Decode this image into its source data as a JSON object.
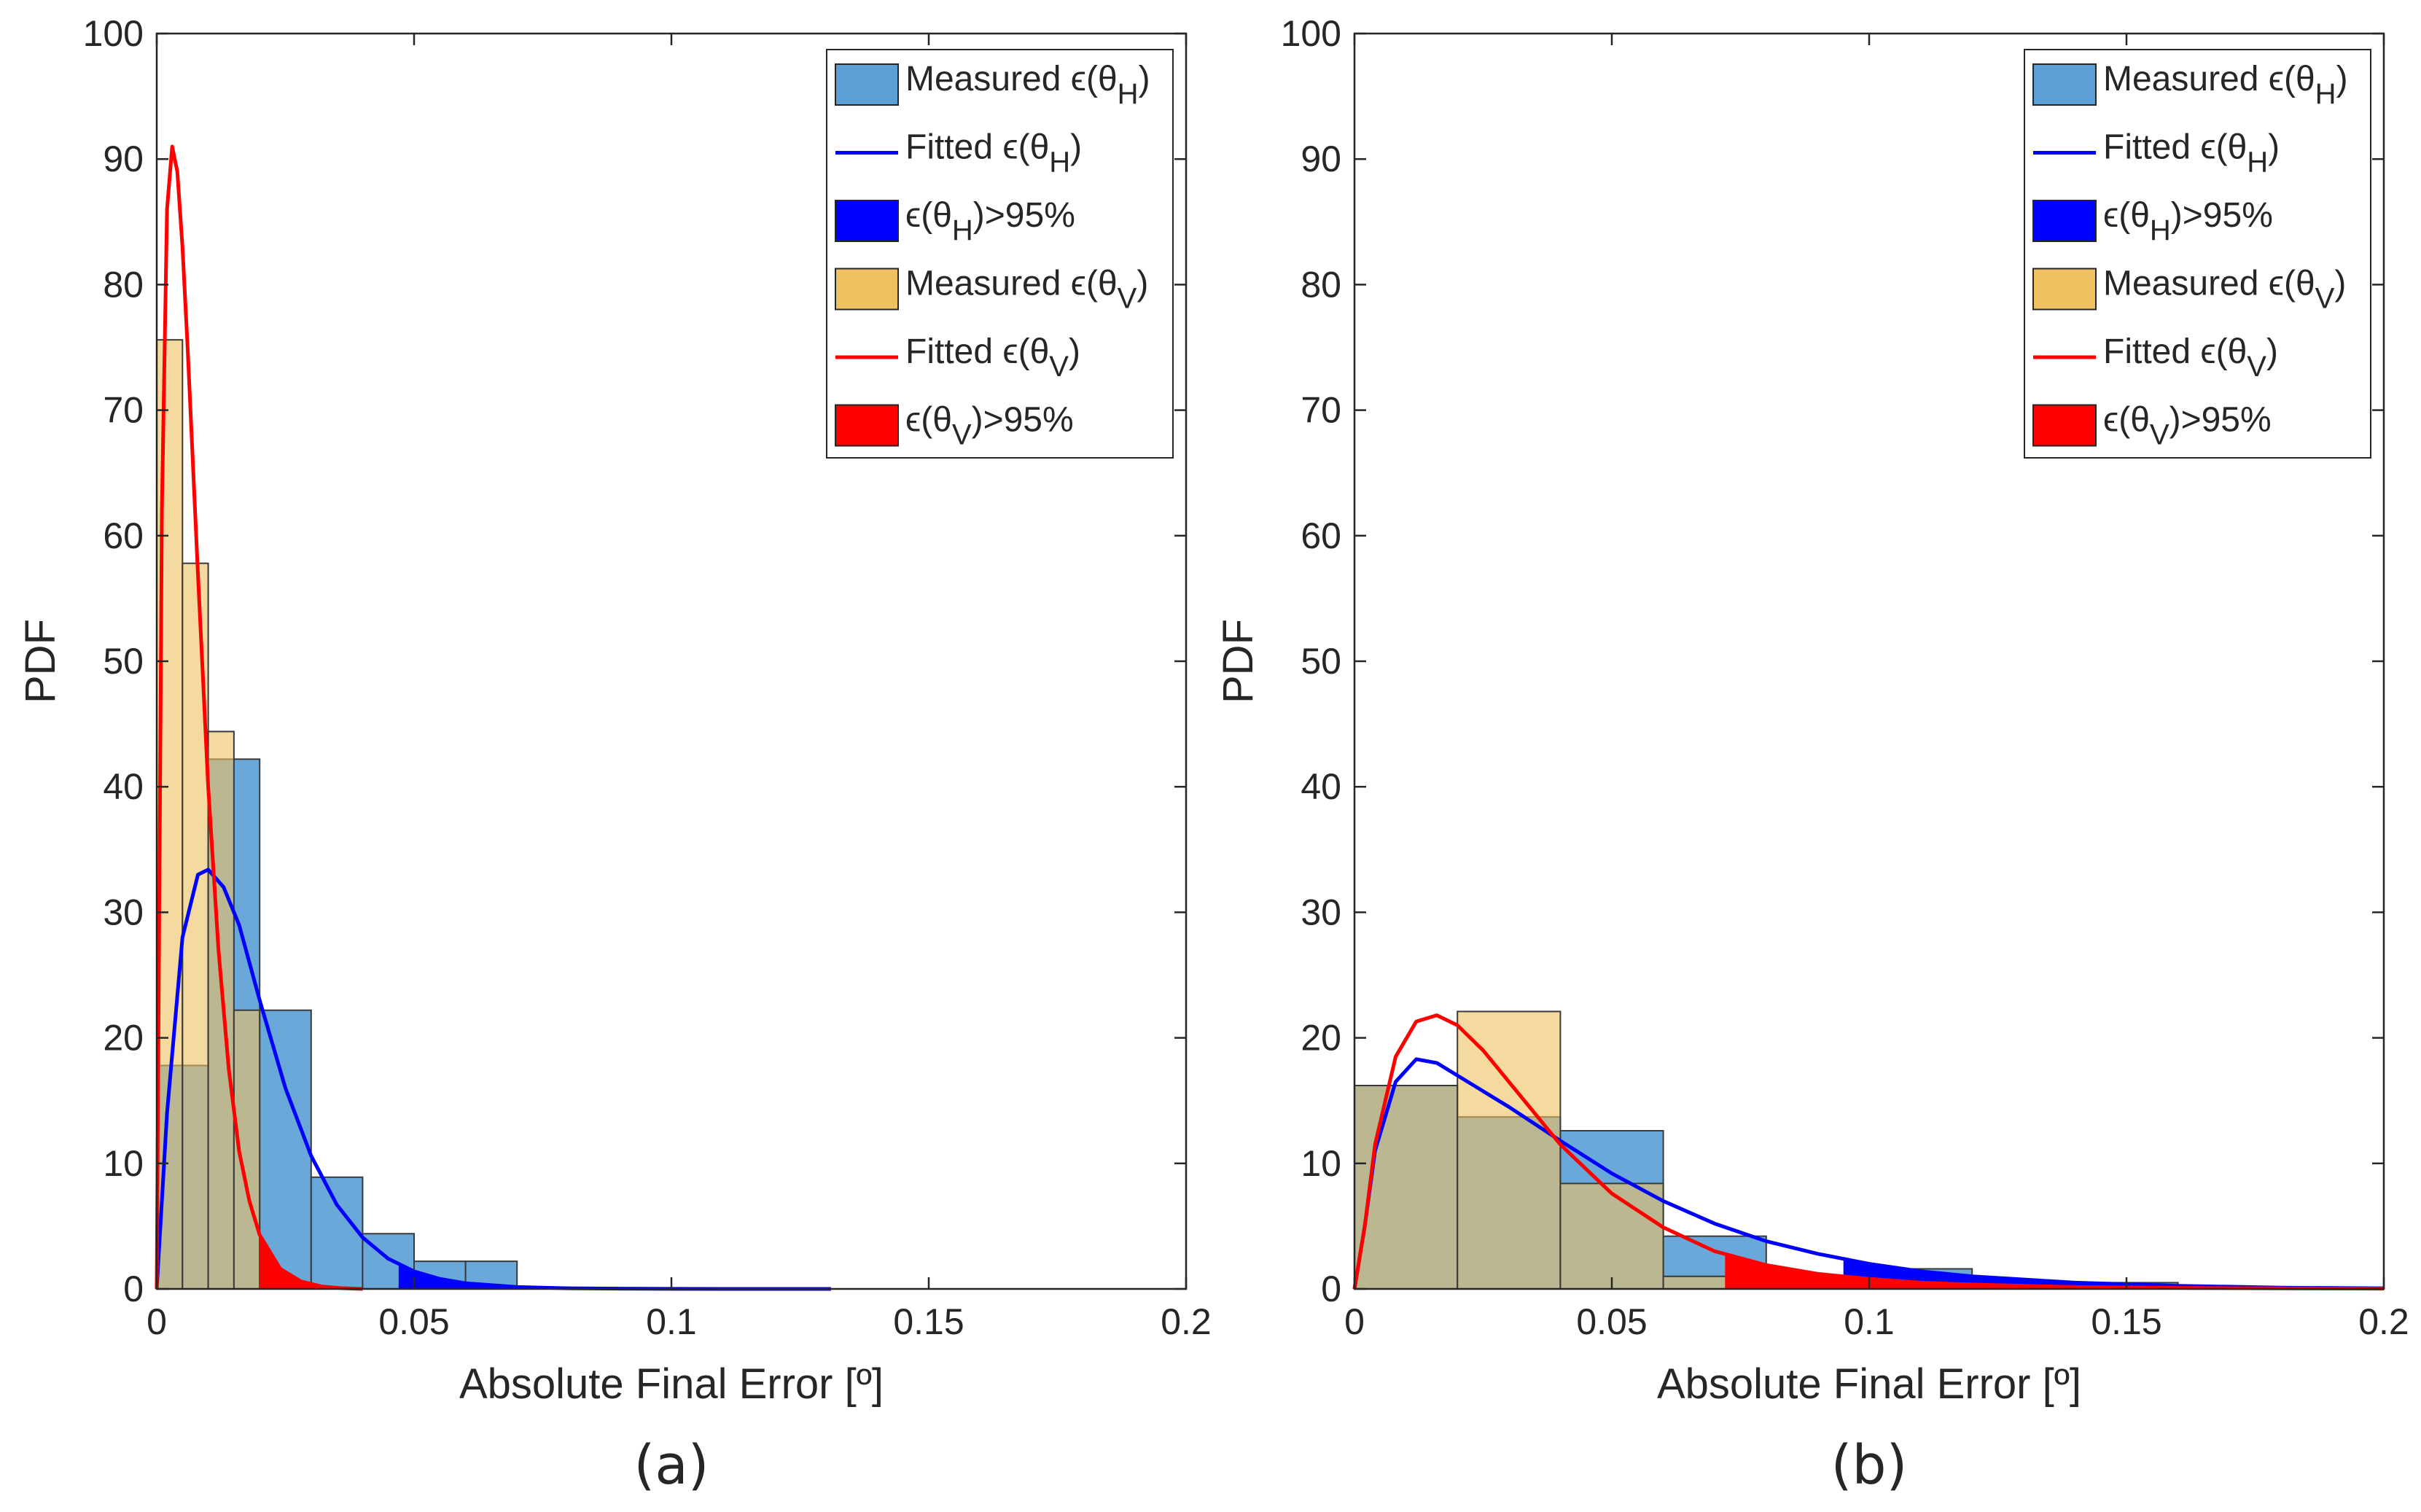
{
  "colors": {
    "measured_h": "#5b9fd6",
    "measured_v": "#efc160",
    "fitted_h": "#0000ff",
    "fitted_v": "#ff0000",
    "tail_h": "#0000ff",
    "tail_v": "#ff0000"
  },
  "chart_data": [
    {
      "type": "bar",
      "panel_label": "(a)",
      "title": "",
      "xlabel": "Absolute Final Error [º]",
      "ylabel": "PDF",
      "xlim": [
        0,
        0.2
      ],
      "ylim": [
        0,
        100
      ],
      "xticks": [
        "0",
        "0.05",
        "0.1",
        "0.15",
        "0.2"
      ],
      "yticks": [
        "0",
        "10",
        "20",
        "30",
        "40",
        "50",
        "60",
        "70",
        "80",
        "90",
        "100"
      ],
      "legend_position": "top-right",
      "legend": [
        {
          "label": "Measured ϵ(θ",
          "sub": "H",
          "tail": ")",
          "kind": "patch",
          "color_key": "measured_h"
        },
        {
          "label": "Fitted ϵ(θ",
          "sub": "H",
          "tail": ")",
          "kind": "line",
          "color_key": "fitted_h"
        },
        {
          "label": "ϵ(θ",
          "sub": "H",
          "tail": ")>95%",
          "kind": "patch",
          "color_key": "tail_h"
        },
        {
          "label": "Measured ϵ(θ",
          "sub": "V",
          "tail": ")",
          "kind": "patch",
          "color_key": "measured_v"
        },
        {
          "label": "Fitted ϵ(θ",
          "sub": "V",
          "tail": ")",
          "kind": "line",
          "color_key": "fitted_v"
        },
        {
          "label": "ϵ(θ",
          "sub": "V",
          "tail": ")>95%",
          "kind": "patch",
          "color_key": "tail_v"
        }
      ],
      "series": [
        {
          "name": "Measured ϵ(θH)",
          "kind": "hist",
          "bin_edges": [
            0,
            0.01,
            0.02,
            0.03,
            0.04,
            0.05,
            0.06,
            0.07
          ],
          "values": [
            17.8,
            42.2,
            22.2,
            8.9,
            4.4,
            2.2,
            2.2
          ]
        },
        {
          "name": "Measured ϵ(θV)",
          "kind": "hist",
          "bin_edges": [
            0,
            0.005,
            0.01,
            0.015,
            0.02
          ],
          "values": [
            75.6,
            57.8,
            44.4,
            22.2
          ]
        },
        {
          "name": "Fitted ϵ(θH)",
          "kind": "line",
          "x": [
            0,
            0.002,
            0.005,
            0.008,
            0.01,
            0.013,
            0.016,
            0.02,
            0.025,
            0.03,
            0.035,
            0.04,
            0.045,
            0.05,
            0.055,
            0.06,
            0.07,
            0.08,
            0.09,
            0.1,
            0.11,
            0.12,
            0.131
          ],
          "values": [
            0,
            14,
            28,
            33,
            33.4,
            32,
            29,
            23,
            16,
            10.6,
            6.7,
            4.1,
            2.4,
            1.4,
            0.8,
            0.45,
            0.15,
            0.05,
            0.02,
            0.01,
            0,
            0,
            0
          ]
        },
        {
          "name": "Fitted ϵ(θV)",
          "kind": "line",
          "x": [
            0,
            0.001,
            0.002,
            0.003,
            0.004,
            0.005,
            0.006,
            0.008,
            0.01,
            0.012,
            0.014,
            0.016,
            0.018,
            0.02,
            0.024,
            0.028,
            0.032,
            0.036,
            0.04
          ],
          "values": [
            0,
            62,
            86,
            91,
            89,
            83,
            75,
            57,
            40,
            27,
            17.5,
            11,
            7,
            4.3,
            1.6,
            0.6,
            0.2,
            0.06,
            0
          ]
        },
        {
          "name": "ϵ(θH)>95%",
          "kind": "area",
          "x_from": 0.047
        },
        {
          "name": "ϵ(θV)>95%",
          "kind": "area",
          "x_from": 0.02
        }
      ]
    },
    {
      "type": "bar",
      "panel_label": "(b)",
      "title": "",
      "xlabel": "Absolute Final Error [º]",
      "ylabel": "PDF",
      "xlim": [
        0,
        0.2
      ],
      "ylim": [
        0,
        100
      ],
      "xticks": [
        "0",
        "0.05",
        "0.1",
        "0.15",
        "0.2"
      ],
      "yticks": [
        "0",
        "10",
        "20",
        "30",
        "40",
        "50",
        "60",
        "70",
        "80",
        "90",
        "100"
      ],
      "legend_position": "top-right",
      "legend": [
        {
          "label": "Measured ϵ(θ",
          "sub": "H",
          "tail": ")",
          "kind": "patch",
          "color_key": "measured_h"
        },
        {
          "label": "Fitted ϵ(θ",
          "sub": "H",
          "tail": ")",
          "kind": "line",
          "color_key": "fitted_h"
        },
        {
          "label": "ϵ(θ",
          "sub": "H",
          "tail": ")>95%",
          "kind": "patch",
          "color_key": "tail_h"
        },
        {
          "label": "Measured ϵ(θ",
          "sub": "V",
          "tail": ")",
          "kind": "patch",
          "color_key": "measured_v"
        },
        {
          "label": "Fitted ϵ(θ",
          "sub": "V",
          "tail": ")",
          "kind": "line",
          "color_key": "fitted_v"
        },
        {
          "label": "ϵ(θ",
          "sub": "V",
          "tail": ")>95%",
          "kind": "patch",
          "color_key": "tail_v"
        }
      ],
      "series": [
        {
          "name": "Measured ϵ(θH)",
          "kind": "hist",
          "bin_edges": [
            0,
            0.02,
            0.04,
            0.06,
            0.08,
            0.1,
            0.12,
            0.14,
            0.16
          ],
          "values": [
            16.2,
            13.7,
            12.6,
            4.2,
            1.0,
            1.6,
            0.5,
            0.5
          ]
        },
        {
          "name": "Measured ϵ(θV)",
          "kind": "hist",
          "bin_edges": [
            0,
            0.02,
            0.04,
            0.06,
            0.08,
            0.1,
            0.12
          ],
          "values": [
            16.2,
            22.1,
            8.4,
            1.0,
            1.0,
            1.0
          ]
        },
        {
          "name": "Fitted ϵ(θH)",
          "kind": "line",
          "x": [
            0,
            0.002,
            0.004,
            0.008,
            0.012,
            0.016,
            0.02,
            0.03,
            0.04,
            0.05,
            0.06,
            0.07,
            0.08,
            0.09,
            0.1,
            0.11,
            0.12,
            0.14,
            0.16,
            0.18,
            0.2
          ],
          "values": [
            0,
            5,
            11,
            16.5,
            18.3,
            18,
            17,
            14.5,
            11.8,
            9.2,
            7,
            5.2,
            3.8,
            2.8,
            2.0,
            1.4,
            1.0,
            0.5,
            0.25,
            0.1,
            0.05
          ]
        },
        {
          "name": "Fitted ϵ(θV)",
          "kind": "line",
          "x": [
            0,
            0.002,
            0.004,
            0.008,
            0.012,
            0.016,
            0.02,
            0.025,
            0.03,
            0.04,
            0.05,
            0.06,
            0.07,
            0.08,
            0.09,
            0.1,
            0.11,
            0.12,
            0.14,
            0.16,
            0.18,
            0.2
          ],
          "values": [
            0,
            5,
            11.5,
            18.5,
            21.3,
            21.8,
            21,
            19,
            16.5,
            11.5,
            7.6,
            4.9,
            3.0,
            1.9,
            1.2,
            0.8,
            0.5,
            0.35,
            0.15,
            0.08,
            0.04,
            0.02
          ]
        },
        {
          "name": "ϵ(θH)>95%",
          "kind": "area",
          "x_from": 0.095
        },
        {
          "name": "ϵ(θV)>95%",
          "kind": "area",
          "x_from": 0.072
        }
      ]
    }
  ]
}
